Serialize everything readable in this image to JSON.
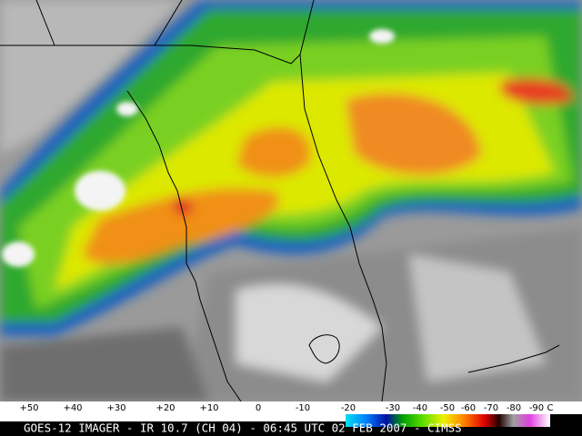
{
  "colorbar": {
    "labels": [
      "+50",
      "+40",
      "+30",
      "+20",
      "+10",
      "0",
      "-10",
      "-20",
      "-30",
      "-40",
      "-50",
      "-60",
      "-70",
      "-80",
      "-90",
      "C"
    ]
  },
  "caption": "GOES-12 IMAGER - IR 10.7 (CH 04) - 06:45 UTC 02 FEB 2007 - CIMSS"
}
